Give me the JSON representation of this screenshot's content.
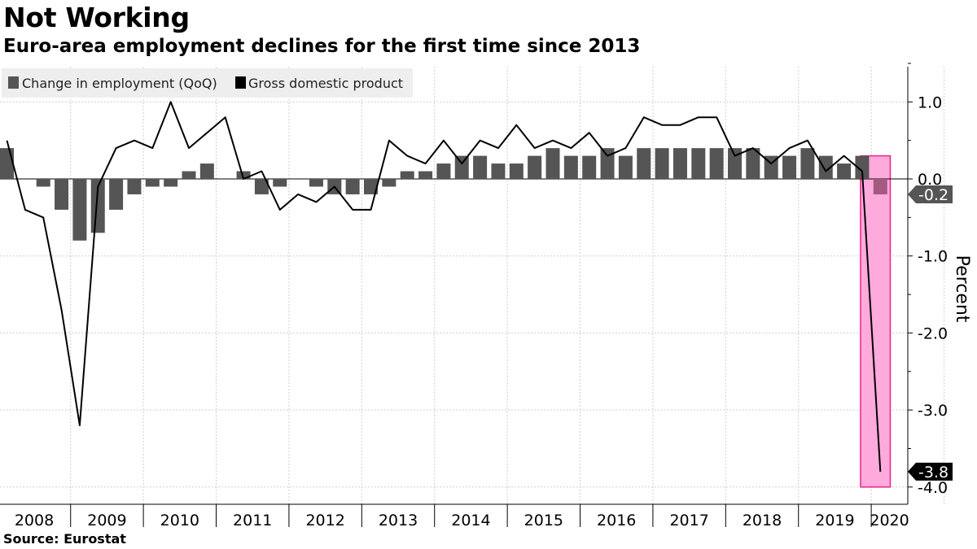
{
  "title": "Not Working",
  "subtitle": "Euro-area employment declines for the first time since 2013",
  "source": "Source: Eurostat",
  "colors": {
    "bar": "#555555",
    "line": "#000000",
    "highlight_fill": "#ffaadd",
    "highlight_stroke": "#ee2288",
    "grid": "#cfcfcf",
    "legend_bg": "#eeeeee"
  },
  "chart_data": {
    "type": "bar",
    "x_tick_labels": [
      "2008",
      "2009",
      "2010",
      "2011",
      "2012",
      "2013",
      "2014",
      "2015",
      "2016",
      "2017",
      "2018",
      "2019",
      "2020"
    ],
    "ylabel": "Percent",
    "ylim": [
      -4.0,
      1.5
    ],
    "y_ticks": [
      1.0,
      0.0,
      -1.0,
      -2.0,
      -3.0,
      -4.0
    ],
    "y_tick_labels": [
      "1.0",
      "0.0",
      "-1.0",
      "-2.0",
      "-3.0",
      "-4.0"
    ],
    "grid": true,
    "legend_position": "top-left",
    "quarters": [
      "2008Q1",
      "2008Q2",
      "2008Q3",
      "2008Q4",
      "2009Q1",
      "2009Q2",
      "2009Q3",
      "2009Q4",
      "2010Q1",
      "2010Q2",
      "2010Q3",
      "2010Q4",
      "2011Q1",
      "2011Q2",
      "2011Q3",
      "2011Q4",
      "2012Q1",
      "2012Q2",
      "2012Q3",
      "2012Q4",
      "2013Q1",
      "2013Q2",
      "2013Q3",
      "2013Q4",
      "2014Q1",
      "2014Q2",
      "2014Q3",
      "2014Q4",
      "2015Q1",
      "2015Q2",
      "2015Q3",
      "2015Q4",
      "2016Q1",
      "2016Q2",
      "2016Q3",
      "2016Q4",
      "2017Q1",
      "2017Q2",
      "2017Q3",
      "2017Q4",
      "2018Q1",
      "2018Q2",
      "2018Q3",
      "2018Q4",
      "2019Q1",
      "2019Q2",
      "2019Q3",
      "2019Q4",
      "2020Q1"
    ],
    "series": [
      {
        "name": "Change in employment (QoQ)",
        "kind": "bar",
        "values": [
          0.4,
          0.0,
          -0.1,
          -0.4,
          -0.8,
          -0.7,
          -0.4,
          -0.2,
          -0.1,
          -0.1,
          0.1,
          0.2,
          0.0,
          0.1,
          -0.2,
          -0.1,
          0.0,
          -0.1,
          -0.2,
          -0.2,
          -0.2,
          -0.1,
          0.1,
          0.1,
          0.2,
          0.3,
          0.3,
          0.2,
          0.2,
          0.3,
          0.4,
          0.3,
          0.3,
          0.4,
          0.3,
          0.4,
          0.4,
          0.4,
          0.4,
          0.4,
          0.4,
          0.4,
          0.3,
          0.3,
          0.4,
          0.3,
          0.2,
          0.3,
          -0.2
        ]
      },
      {
        "name": "Gross domestic product",
        "kind": "line",
        "values": [
          0.5,
          -0.4,
          -0.5,
          -1.7,
          -3.2,
          -0.1,
          0.4,
          0.5,
          0.4,
          1.0,
          0.4,
          0.6,
          0.8,
          0.0,
          0.1,
          -0.4,
          -0.2,
          -0.3,
          -0.1,
          -0.4,
          -0.4,
          0.5,
          0.3,
          0.2,
          0.5,
          0.2,
          0.5,
          0.4,
          0.7,
          0.4,
          0.5,
          0.4,
          0.6,
          0.3,
          0.4,
          0.8,
          0.7,
          0.7,
          0.8,
          0.8,
          0.3,
          0.4,
          0.2,
          0.4,
          0.5,
          0.1,
          0.3,
          0.1,
          -3.8
        ]
      }
    ],
    "highlight": {
      "from": "2019Q4",
      "to": "2020Q1"
    },
    "last_value_labels": [
      {
        "series": "Change in employment (QoQ)",
        "label": "-0.2"
      },
      {
        "series": "Gross domestic product",
        "label": "-3.8"
      }
    ]
  }
}
